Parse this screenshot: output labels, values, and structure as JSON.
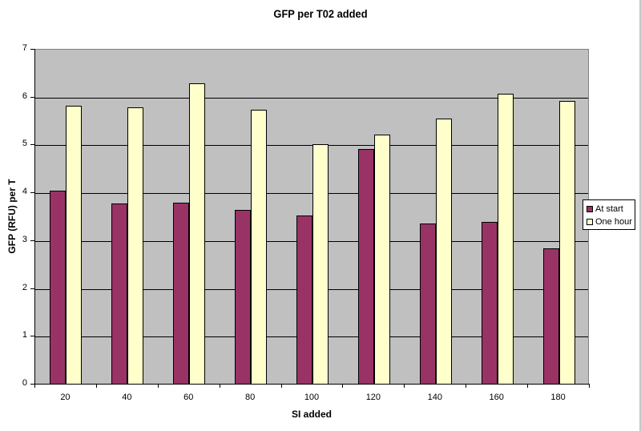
{
  "chart_data": {
    "type": "bar",
    "title": "GFP per T02 added",
    "xlabel": "SI added",
    "ylabel": "GFP (RFU) per T",
    "categories": [
      "20",
      "40",
      "60",
      "80",
      "100",
      "120",
      "140",
      "160",
      "180"
    ],
    "series": [
      {
        "name": "At start",
        "color": "#993366",
        "values": [
          4.03,
          3.76,
          3.79,
          3.63,
          3.52,
          4.9,
          3.35,
          3.38,
          2.83
        ]
      },
      {
        "name": "One hour",
        "color": "#ffffcc",
        "values": [
          5.81,
          5.78,
          6.28,
          5.73,
          5.0,
          5.2,
          5.54,
          6.06,
          5.91
        ]
      }
    ],
    "ylim": [
      0,
      7
    ],
    "yticks": [
      "0",
      "1",
      "2",
      "3",
      "4",
      "5",
      "6",
      "7"
    ],
    "grid": true,
    "plot_background": "#c0c0c0",
    "legend_position": "right"
  },
  "legend": {
    "items": [
      {
        "label": "At start",
        "color": "#993366"
      },
      {
        "label": "One hour",
        "color": "#ffffcc"
      }
    ]
  }
}
